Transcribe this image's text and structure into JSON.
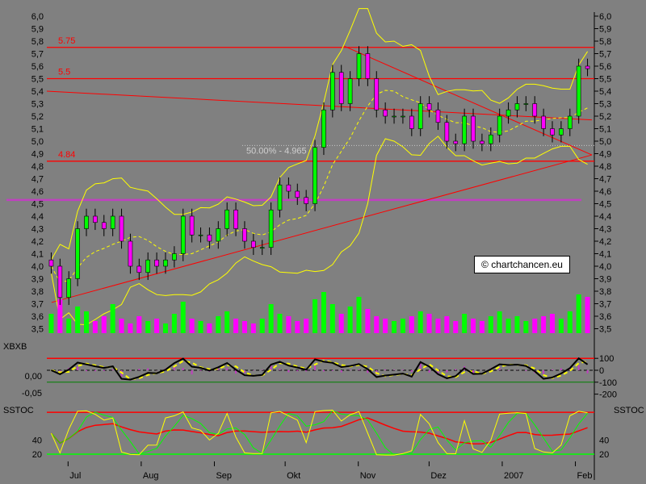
{
  "chart_data": {
    "type": "candlestick",
    "price_axis": {
      "min": 3.5,
      "max": 6.0,
      "step": 0.1,
      "labels": [
        "6,0",
        "5,9",
        "5,8",
        "5,7",
        "5,6",
        "5,5",
        "5,4",
        "5,3",
        "5,2",
        "5,1",
        "5,0",
        "4,9",
        "4,8",
        "4,7",
        "4,6",
        "4,5",
        "4,4",
        "4,3",
        "4,2",
        "4,1",
        "4,0",
        "3,9",
        "3,8",
        "3,7",
        "3,6",
        "3,5"
      ]
    },
    "x_range": [
      "2006-06-22",
      "2007-02-08"
    ],
    "month_ticks": [
      {
        "label": "Jul",
        "date": "2006-07-01"
      },
      {
        "label": "Aug",
        "date": "2006-08-01"
      },
      {
        "label": "Sep",
        "date": "2006-09-01"
      },
      {
        "label": "Okt",
        "date": "2006-10-01"
      },
      {
        "label": "Nov",
        "date": "2006-11-01"
      },
      {
        "label": "Dez",
        "date": "2006-12-01"
      },
      {
        "label": "2007",
        "date": "2007-01-01"
      },
      {
        "label": "Feb",
        "date": "2007-02-01"
      }
    ],
    "closes": [
      4.0,
      3.75,
      3.9,
      4.3,
      4.4,
      4.35,
      4.3,
      4.4,
      4.2,
      4.0,
      3.95,
      4.05,
      4.0,
      4.05,
      4.1,
      4.4,
      4.25,
      4.25,
      4.2,
      4.3,
      4.45,
      4.3,
      4.2,
      4.15,
      4.15,
      4.45,
      4.65,
      4.6,
      4.55,
      4.5,
      4.95,
      5.25,
      5.55,
      5.3,
      5.5,
      5.7,
      5.5,
      5.25,
      5.2,
      5.2,
      5.2,
      5.1,
      5.3,
      5.25,
      5.15,
      5.0,
      4.98,
      5.2,
      5.0,
      4.98,
      5.05,
      5.2,
      5.25,
      5.3,
      5.3,
      5.2,
      5.1,
      5.05,
      5.1,
      5.2,
      5.6,
      5.58
    ],
    "volume": [
      40,
      70,
      30,
      55,
      45,
      25,
      35,
      60,
      30,
      20,
      35,
      25,
      30,
      20,
      40,
      65,
      30,
      25,
      20,
      35,
      45,
      30,
      25,
      20,
      30,
      60,
      40,
      35,
      25,
      30,
      70,
      85,
      60,
      40,
      55,
      75,
      50,
      35,
      30,
      25,
      30,
      35,
      45,
      40,
      30,
      35,
      25,
      40,
      30,
      25,
      35,
      45,
      30,
      35,
      25,
      30,
      35,
      40,
      30,
      45,
      80,
      75
    ],
    "horizontal_lines": [
      {
        "price": 5.75,
        "label": "5.75",
        "color": "#ff0000"
      },
      {
        "price": 5.5,
        "label": "5.5",
        "color": "#ff0000"
      },
      {
        "price": 4.84,
        "label": "4.84",
        "color": "#ff0000"
      },
      {
        "price": 4.53,
        "label": "",
        "color": "#c040c0"
      }
    ],
    "trend_lines": [
      {
        "from": {
          "date": "2006-06-22",
          "price": 5.4
        },
        "to": {
          "date": "2007-02-08",
          "price": 5.17
        }
      },
      {
        "from": {
          "date": "2006-06-24",
          "price": 3.71
        },
        "to": {
          "date": "2007-02-08",
          "price": 4.89
        }
      },
      {
        "from": {
          "date": "2006-10-26",
          "price": 5.76
        },
        "to": {
          "date": "2007-02-08",
          "price": 4.89
        }
      }
    ],
    "fib_label": "50.00% - 4.965",
    "fib_price": 4.965,
    "colors": {
      "up": "#00ff00",
      "down": "#ff00ff",
      "bands": "#ffff00",
      "lines": "#ff0000"
    },
    "xbxb": {
      "title": "XBXB",
      "left_labels": [
        "0,00",
        "-0,05"
      ],
      "right_labels": [
        "100",
        "0",
        "-100",
        "-200"
      ]
    },
    "sstoc": {
      "title": "SSTOC",
      "left_labels": [
        "40",
        "20"
      ],
      "right_labels": [
        "40",
        "20"
      ],
      "upper": 80,
      "lower": 20
    }
  },
  "watermark": "© chartchancen.eu"
}
